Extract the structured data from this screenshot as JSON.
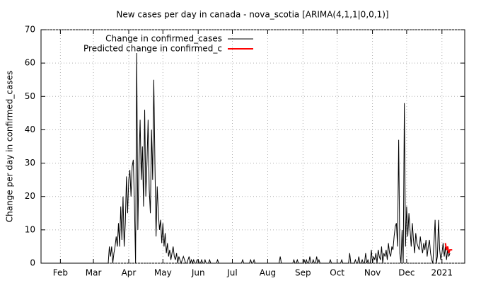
{
  "chart_data": {
    "type": "line",
    "title": "New cases per day in canada - nova_scotia [ARIMA(4,1,1|0,0,1)]",
    "y_label": "Change per day in confirmed_cases",
    "ylim": [
      0,
      70
    ],
    "yticks": [
      0,
      10,
      20,
      30,
      40,
      50,
      60,
      70
    ],
    "grid": true,
    "legend": "top-left",
    "categories": [
      null,
      null,
      null,
      null,
      null,
      null,
      null,
      null,
      null,
      null,
      null,
      null,
      null,
      null,
      null,
      null,
      null,
      "Feb",
      null,
      null,
      null,
      null,
      null,
      null,
      null,
      null,
      null,
      null,
      null,
      null,
      null,
      null,
      null,
      null,
      null,
      null,
      null,
      null,
      null,
      null,
      null,
      null,
      null,
      null,
      null,
      null,
      "Mar",
      null,
      null,
      null,
      null,
      null,
      null,
      null,
      null,
      null,
      null,
      null,
      null,
      null,
      null,
      null,
      null,
      null,
      null,
      null,
      null,
      null,
      null,
      null,
      null,
      null,
      null,
      null,
      null,
      null,
      null,
      "Apr",
      null,
      null,
      null,
      null,
      null,
      null,
      null,
      null,
      null,
      null,
      null,
      null,
      null,
      null,
      null,
      null,
      null,
      null,
      null,
      null,
      null,
      null,
      null,
      null,
      null,
      null,
      null,
      null,
      null,
      "May",
      null,
      null,
      null,
      null,
      null,
      null,
      null,
      null,
      null,
      null,
      null,
      null,
      null,
      null,
      null,
      null,
      null,
      null,
      null,
      null,
      null,
      null,
      null,
      null,
      null,
      null,
      null,
      null,
      null,
      null,
      "Jun",
      null,
      null,
      null,
      null,
      null,
      null,
      null,
      null,
      null,
      null,
      null,
      null,
      null,
      null,
      null,
      null,
      null,
      null,
      null,
      null,
      null,
      null,
      null,
      null,
      null,
      null,
      null,
      null,
      null,
      "Jul",
      null,
      null,
      null,
      null,
      null,
      null,
      null,
      null,
      null,
      null,
      null,
      null,
      null,
      null,
      null,
      null,
      null,
      null,
      null,
      null,
      null,
      null,
      null,
      null,
      null,
      null,
      null,
      null,
      null,
      null,
      "Aug",
      null,
      null,
      null,
      null,
      null,
      null,
      null,
      null,
      null,
      null,
      null,
      null,
      null,
      null,
      null,
      null,
      null,
      null,
      null,
      null,
      null,
      null,
      null,
      null,
      null,
      null,
      null,
      null,
      null,
      null,
      "Sep",
      null,
      null,
      null,
      null,
      null,
      null,
      null,
      null,
      null,
      null,
      null,
      null,
      null,
      null,
      null,
      null,
      null,
      null,
      null,
      null,
      null,
      null,
      null,
      null,
      null,
      null,
      null,
      null,
      null,
      "Oct",
      null,
      null,
      null,
      null,
      null,
      null,
      null,
      null,
      null,
      null,
      null,
      null,
      null,
      null,
      null,
      null,
      null,
      null,
      null,
      null,
      null,
      null,
      null,
      null,
      null,
      null,
      null,
      null,
      null,
      null,
      "Nov",
      null,
      null,
      null,
      null,
      null,
      null,
      null,
      null,
      null,
      null,
      null,
      null,
      null,
      null,
      null,
      null,
      null,
      null,
      null,
      null,
      null,
      null,
      null,
      null,
      null,
      null,
      null,
      null,
      null,
      "Dec",
      null,
      null,
      null,
      null,
      null,
      null,
      null,
      null,
      null,
      null,
      null,
      null,
      null,
      null,
      null,
      null,
      null,
      null,
      null,
      null,
      null,
      null,
      null,
      null,
      null,
      null,
      null,
      null,
      null,
      null,
      "2021",
      null,
      null,
      null,
      null,
      null,
      null,
      null,
      null,
      null,
      null,
      null,
      null,
      null,
      null,
      null,
      null,
      null,
      null,
      null,
      null
    ],
    "series": [
      {
        "name": "Change in confirmed_cases",
        "color": "#000000",
        "values": [
          0,
          0,
          0,
          0,
          0,
          0,
          0,
          0,
          0,
          0,
          0,
          0,
          0,
          0,
          0,
          0,
          0,
          0,
          0,
          0,
          0,
          0,
          0,
          0,
          0,
          0,
          0,
          0,
          0,
          0,
          0,
          0,
          0,
          0,
          0,
          0,
          0,
          0,
          0,
          0,
          0,
          0,
          0,
          0,
          0,
          0,
          0,
          0,
          0,
          0,
          0,
          0,
          0,
          0,
          0,
          0,
          0,
          0,
          0,
          0,
          5,
          2,
          5,
          0,
          3,
          5,
          8,
          5,
          12,
          5,
          17,
          7,
          20,
          5,
          12,
          26,
          15,
          25,
          28,
          20,
          29,
          31,
          18,
          0,
          63,
          10,
          30,
          43,
          25,
          35,
          17,
          46,
          20,
          30,
          43,
          22,
          15,
          40,
          25,
          55,
          30,
          8,
          23,
          15,
          10,
          13,
          6,
          12,
          5,
          9,
          3,
          6,
          2,
          4,
          1,
          3,
          5,
          2,
          1,
          3,
          0,
          2,
          1,
          0,
          1,
          2,
          1,
          0,
          0,
          1,
          2,
          0,
          1,
          0,
          1,
          0,
          0,
          1,
          1,
          0,
          0,
          1,
          0,
          0,
          1,
          0,
          0,
          0,
          1,
          0,
          0,
          0,
          0,
          0,
          0,
          1,
          0,
          0,
          0,
          0,
          0,
          0,
          0,
          0,
          0,
          0,
          0,
          0,
          0,
          0,
          0,
          0,
          0,
          0,
          0,
          0,
          0,
          1,
          0,
          0,
          0,
          0,
          0,
          0,
          1,
          0,
          0,
          1,
          0,
          0,
          0,
          0,
          0,
          0,
          0,
          0,
          0,
          0,
          0,
          0,
          0,
          0,
          0,
          0,
          0,
          0,
          0,
          0,
          0,
          0,
          2,
          0,
          0,
          0,
          0,
          0,
          0,
          0,
          0,
          0,
          0,
          0,
          1,
          0,
          0,
          1,
          0,
          0,
          0,
          0,
          0,
          1,
          0,
          1,
          0,
          0,
          2,
          0,
          0,
          1,
          0,
          0,
          2,
          0,
          1,
          0,
          0,
          0,
          0,
          0,
          0,
          0,
          0,
          0,
          1,
          0,
          0,
          0,
          0,
          0,
          0,
          0,
          0,
          0,
          1,
          0,
          0,
          0,
          0,
          0,
          0,
          3,
          0,
          0,
          0,
          0,
          1,
          0,
          0,
          2,
          0,
          0,
          1,
          0,
          0,
          3,
          0,
          1,
          0,
          0,
          4,
          0,
          2,
          1,
          3,
          0,
          4,
          2,
          1,
          5,
          0,
          3,
          2,
          4,
          1,
          6,
          3,
          2,
          5,
          4,
          8,
          11,
          12,
          5,
          37,
          3,
          0,
          10,
          0,
          48,
          5,
          17,
          8,
          15,
          10,
          5,
          12,
          7,
          3,
          9,
          6,
          5,
          4,
          8,
          5,
          3,
          6,
          4,
          7,
          2,
          5,
          7,
          3,
          1,
          0,
          6,
          13,
          0,
          2,
          13,
          4,
          1,
          3,
          6,
          2,
          5,
          1,
          4,
          2,
          3,
          null,
          null,
          null,
          null,
          null,
          null,
          null,
          null,
          null,
          null,
          null,
          null,
          null
        ]
      },
      {
        "name": "Predicted change in confirmed_c",
        "color": "#ff0000",
        "values": [
          null,
          null,
          null,
          null,
          null,
          null,
          null,
          null,
          null,
          null,
          null,
          null,
          null,
          null,
          null,
          null,
          null,
          null,
          null,
          null,
          null,
          null,
          null,
          null,
          null,
          null,
          null,
          null,
          null,
          null,
          null,
          null,
          null,
          null,
          null,
          null,
          null,
          null,
          null,
          null,
          null,
          null,
          null,
          null,
          null,
          null,
          null,
          null,
          null,
          null,
          null,
          null,
          null,
          null,
          null,
          null,
          null,
          null,
          null,
          null,
          null,
          null,
          null,
          null,
          null,
          null,
          null,
          null,
          null,
          null,
          null,
          null,
          null,
          null,
          null,
          null,
          null,
          null,
          null,
          null,
          null,
          null,
          null,
          null,
          null,
          null,
          null,
          null,
          null,
          null,
          null,
          null,
          null,
          null,
          null,
          null,
          null,
          null,
          null,
          null,
          null,
          null,
          null,
          null,
          null,
          null,
          null,
          null,
          null,
          null,
          null,
          null,
          null,
          null,
          null,
          null,
          null,
          null,
          null,
          null,
          null,
          null,
          null,
          null,
          null,
          null,
          null,
          null,
          null,
          null,
          null,
          null,
          null,
          null,
          null,
          null,
          null,
          null,
          null,
          null,
          null,
          null,
          null,
          null,
          null,
          null,
          null,
          null,
          null,
          null,
          null,
          null,
          null,
          null,
          null,
          null,
          null,
          null,
          null,
          null,
          null,
          null,
          null,
          null,
          null,
          null,
          null,
          null,
          null,
          null,
          null,
          null,
          null,
          null,
          null,
          null,
          null,
          null,
          null,
          null,
          null,
          null,
          null,
          null,
          null,
          null,
          null,
          null,
          null,
          null,
          null,
          null,
          null,
          null,
          null,
          null,
          null,
          null,
          null,
          null,
          null,
          null,
          null,
          null,
          null,
          null,
          null,
          null,
          null,
          null,
          null,
          null,
          null,
          null,
          null,
          null,
          null,
          null,
          null,
          null,
          null,
          null,
          null,
          null,
          null,
          null,
          null,
          null,
          null,
          null,
          null,
          null,
          null,
          null,
          null,
          null,
          null,
          null,
          null,
          null,
          null,
          null,
          null,
          null,
          null,
          null,
          null,
          null,
          null,
          null,
          null,
          null,
          null,
          null,
          null,
          null,
          null,
          null,
          null,
          null,
          null,
          null,
          null,
          null,
          null,
          null,
          null,
          null,
          null,
          null,
          null,
          null,
          null,
          null,
          null,
          null,
          null,
          null,
          null,
          null,
          null,
          null,
          null,
          null,
          null,
          null,
          null,
          null,
          null,
          null,
          null,
          null,
          null,
          null,
          null,
          null,
          null,
          null,
          null,
          null,
          null,
          null,
          null,
          null,
          null,
          null,
          null,
          null,
          null,
          null,
          null,
          null,
          null,
          null,
          null,
          null,
          null,
          null,
          null,
          null,
          null,
          null,
          null,
          null,
          null,
          null,
          null,
          null,
          null,
          null,
          null,
          null,
          null,
          null,
          null,
          null,
          null,
          null,
          null,
          null,
          null,
          null,
          null,
          null,
          null,
          null,
          null,
          null,
          null,
          null,
          null,
          null,
          null,
          null,
          null,
          6,
          4,
          5,
          3,
          4,
          4,
          4,
          null,
          null,
          null,
          null,
          null,
          null,
          null,
          null,
          null,
          null,
          null
        ]
      }
    ]
  }
}
